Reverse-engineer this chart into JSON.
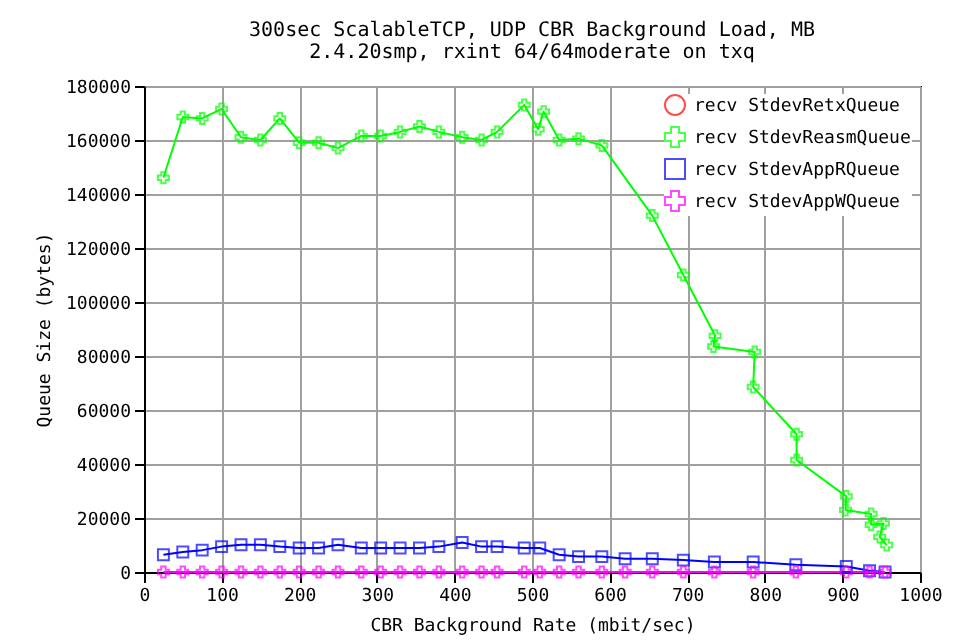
{
  "chart_data": {
    "type": "line",
    "title": "300sec ScalableTCP, UDP CBR Background Load, MB",
    "subtitle": "2.4.20smp, rxint 64/64moderate on txq",
    "xlabel": "CBR Background Rate (mbit/sec)",
    "ylabel": "Queue Size (bytes)",
    "x": [
      25,
      50,
      75,
      100,
      125,
      150,
      175,
      200,
      225,
      250,
      280,
      305,
      330,
      355,
      380,
      410,
      435,
      455,
      490,
      510,
      535,
      560,
      590,
      620,
      655,
      695,
      735,
      785,
      840,
      905,
      935,
      955
    ],
    "series": [
      {
        "name": "recv StdevRetxQueue",
        "color": "#ff0000",
        "marker": "circle",
        "values": [
          null,
          null,
          null,
          null,
          null,
          null,
          null,
          null,
          null,
          null,
          null,
          null,
          null,
          null,
          null,
          null,
          null,
          null,
          null,
          null,
          null,
          null,
          null,
          null,
          null,
          null,
          null,
          null,
          null,
          null,
          null,
          null
        ]
      },
      {
        "name": "recv StdevReasmQueue",
        "color": "#00ff00",
        "marker": "cross",
        "x": [
          25,
          50,
          75,
          100,
          125,
          150,
          175,
          200,
          225,
          250,
          280,
          305,
          330,
          355,
          380,
          410,
          435,
          455,
          490,
          508,
          515,
          535,
          560,
          590,
          655,
          695,
          736,
          734,
          787,
          785,
          841,
          841,
          905,
          904,
          937,
          937,
          953,
          948,
          957
        ],
        "values": [
          146000,
          168500,
          168000,
          171500,
          161000,
          160000,
          168000,
          159000,
          159000,
          157000,
          161500,
          161500,
          163000,
          165000,
          163000,
          161000,
          160000,
          163000,
          173000,
          164000,
          170500,
          160000,
          160500,
          158000,
          132000,
          110000,
          87500,
          83500,
          81500,
          68500,
          51000,
          41500,
          28000,
          23000,
          21500,
          17500,
          18000,
          13000,
          10000
        ]
      },
      {
        "name": "recv StdevAppRQueue",
        "color": "#0000ff",
        "marker": "square",
        "values": [
          6400,
          7400,
          8100,
          9400,
          10100,
          10100,
          9400,
          8900,
          8900,
          10100,
          8900,
          8900,
          8900,
          8900,
          9400,
          10900,
          9400,
          9400,
          8900,
          8900,
          6400,
          5700,
          5700,
          4900,
          4900,
          4400,
          3700,
          3700,
          2700,
          2000,
          500,
          0
        ]
      },
      {
        "name": "recv StdevAppWQueue",
        "color": "#ff00ff",
        "marker": "cross",
        "values": [
          0,
          0,
          0,
          0,
          0,
          0,
          0,
          0,
          0,
          0,
          0,
          0,
          0,
          0,
          0,
          0,
          0,
          0,
          0,
          0,
          0,
          0,
          0,
          0,
          0,
          0,
          0,
          0,
          0,
          0,
          0,
          0
        ]
      }
    ],
    "xlim": [
      0,
      1000
    ],
    "xticks": [
      0,
      100,
      200,
      300,
      400,
      500,
      600,
      700,
      800,
      900,
      1000
    ],
    "ylim": [
      0,
      180000
    ],
    "yticks": [
      0,
      20000,
      40000,
      60000,
      80000,
      100000,
      120000,
      140000,
      160000,
      180000
    ],
    "grid": true,
    "legend": "top right",
    "line_style": "solid"
  }
}
